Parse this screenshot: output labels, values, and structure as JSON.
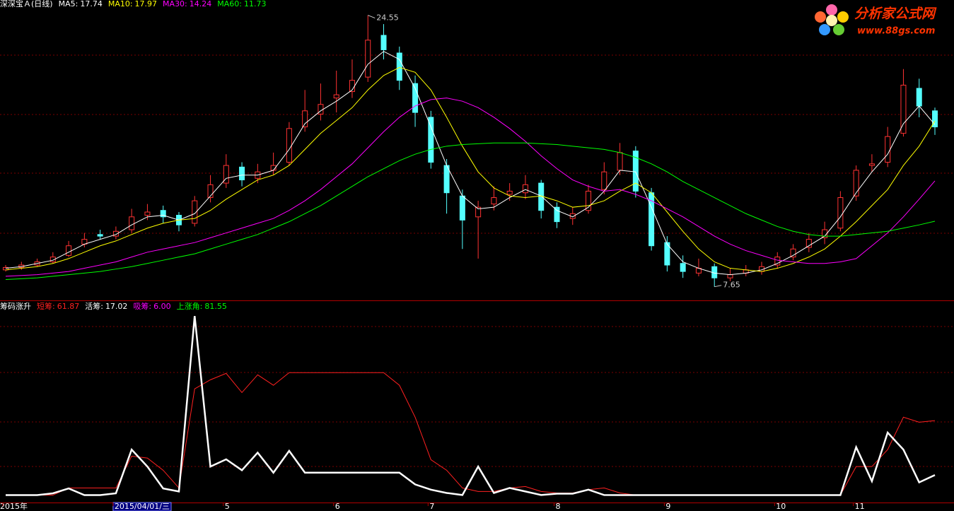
{
  "chart_data": [
    {
      "type": "candlestick",
      "title": "深深宝Ａ(日线)",
      "up_color": "#ff3232",
      "down_color": "#54ffff",
      "ylim": [
        6.8,
        25.5
      ],
      "open": [
        8.7,
        8.85,
        9.0,
        9.2,
        9.6,
        10.3,
        10.9,
        10.8,
        11.2,
        12.1,
        12.4,
        12.1,
        11.6,
        13.2,
        14.1,
        15.1,
        14.4,
        14.9,
        15.4,
        17.6,
        18.4,
        19.4,
        19.8,
        20.7,
        23.3,
        22.2,
        20.3,
        18.2,
        15.2,
        13.3,
        12.0,
        12.8,
        13.4,
        13.5,
        14.1,
        12.6,
        11.9,
        12.4,
        13.7,
        14.9,
        16.1,
        13.5,
        10.4,
        9.1,
        8.5,
        8.9,
        8.2,
        8.5,
        8.6,
        9.0,
        9.5,
        10.1,
        10.7,
        11.3,
        13.3,
        15.2,
        15.4,
        17.2,
        20.0,
        18.6
      ],
      "high": [
        9.0,
        9.2,
        9.4,
        9.8,
        10.5,
        11.0,
        11.2,
        11.4,
        12.5,
        12.8,
        12.7,
        12.3,
        13.3,
        14.6,
        15.9,
        15.4,
        15.3,
        16.0,
        17.9,
        19.9,
        20.3,
        21.1,
        21.8,
        24.55,
        24.0,
        22.6,
        20.8,
        18.6,
        15.6,
        13.7,
        13.0,
        13.9,
        14.1,
        14.6,
        14.3,
        12.9,
        12.6,
        14.0,
        15.4,
        16.6,
        16.4,
        13.8,
        10.8,
        9.6,
        9.4,
        9.1,
        8.8,
        9.0,
        9.2,
        9.8,
        10.3,
        11.0,
        11.7,
        13.6,
        15.2,
        15.9,
        17.6,
        21.2,
        20.6,
        18.8
      ],
      "low": [
        8.6,
        8.7,
        8.9,
        9.1,
        9.5,
        10.1,
        10.6,
        10.6,
        11.0,
        11.8,
        11.6,
        11.1,
        11.4,
        12.9,
        13.8,
        13.9,
        14.1,
        14.6,
        15.2,
        17.3,
        18.0,
        18.5,
        19.4,
        20.4,
        21.8,
        19.9,
        17.6,
        15.0,
        12.2,
        10.0,
        9.4,
        12.4,
        13.0,
        13.1,
        11.9,
        11.3,
        11.5,
        12.2,
        13.4,
        14.6,
        13.2,
        9.9,
        8.6,
        8.2,
        8.3,
        7.65,
        8.0,
        8.3,
        8.4,
        8.8,
        9.3,
        9.8,
        10.3,
        11.1,
        13.0,
        14.8,
        15.1,
        17.0,
        18.2,
        17.1
      ],
      "close": [
        8.85,
        9.0,
        9.2,
        9.5,
        10.2,
        10.6,
        10.8,
        11.1,
        12.0,
        12.3,
        12.0,
        11.5,
        13.0,
        14.0,
        15.2,
        14.3,
        14.8,
        15.2,
        17.5,
        18.6,
        19.0,
        19.6,
        20.5,
        23.0,
        22.4,
        20.5,
        18.5,
        15.4,
        13.5,
        11.8,
        12.6,
        13.2,
        13.6,
        14.0,
        12.4,
        11.7,
        12.2,
        13.6,
        14.8,
        16.0,
        13.6,
        10.2,
        9.0,
        8.6,
        8.8,
        8.2,
        8.4,
        8.7,
        8.9,
        9.5,
        10.0,
        10.6,
        11.2,
        13.2,
        14.9,
        15.3,
        17.0,
        20.2,
        18.9,
        17.6
      ],
      "series": [
        {
          "name": "MA5:",
          "legend_value": 17.74,
          "color": "#ffffff",
          "values": [
            8.8,
            8.9,
            9.1,
            9.3,
            9.8,
            10.3,
            10.6,
            10.9,
            11.5,
            12.0,
            12.1,
            11.8,
            12.2,
            13.3,
            14.4,
            14.6,
            14.6,
            14.9,
            16.2,
            17.8,
            18.6,
            19.2,
            19.9,
            21.5,
            22.3,
            21.8,
            20.0,
            17.6,
            15.2,
            13.3,
            12.5,
            12.6,
            13.2,
            13.7,
            13.3,
            12.4,
            12.0,
            12.6,
            13.6,
            14.9,
            14.8,
            12.6,
            10.3,
            9.2,
            8.8,
            8.5,
            8.4,
            8.5,
            8.7,
            9.1,
            9.6,
            10.2,
            10.8,
            12.0,
            13.5,
            14.8,
            15.9,
            17.8,
            18.9,
            17.74
          ]
        },
        {
          "name": "MA10:",
          "legend_value": 17.97,
          "color": "#ffff00",
          "values": [
            8.7,
            8.8,
            8.9,
            9.1,
            9.4,
            9.8,
            10.2,
            10.5,
            10.9,
            11.3,
            11.6,
            11.8,
            11.9,
            12.4,
            13.1,
            13.7,
            14.3,
            14.6,
            15.2,
            16.2,
            17.2,
            18.0,
            18.8,
            19.9,
            20.8,
            21.3,
            21.0,
            19.9,
            18.2,
            16.4,
            14.8,
            13.8,
            13.3,
            13.2,
            13.3,
            13.0,
            12.6,
            12.7,
            13.0,
            13.6,
            14.1,
            13.5,
            12.3,
            11.1,
            10.0,
            9.2,
            8.8,
            8.7,
            8.6,
            8.8,
            9.1,
            9.5,
            10.0,
            10.8,
            11.7,
            12.7,
            13.7,
            15.2,
            16.4,
            17.97
          ]
        },
        {
          "name": "MA30:",
          "legend_value": 14.24,
          "color": "#ff00ff",
          "values": [
            8.3,
            8.35,
            8.4,
            8.5,
            8.6,
            8.8,
            9.0,
            9.2,
            9.5,
            9.8,
            10.0,
            10.2,
            10.4,
            10.7,
            11.0,
            11.3,
            11.6,
            11.9,
            12.4,
            13.0,
            13.7,
            14.5,
            15.3,
            16.3,
            17.3,
            18.2,
            18.9,
            19.3,
            19.4,
            19.2,
            18.8,
            18.2,
            17.5,
            16.7,
            15.8,
            15.0,
            14.3,
            13.9,
            13.6,
            13.7,
            13.4,
            13.0,
            12.5,
            12.0,
            11.4,
            10.8,
            10.3,
            9.9,
            9.6,
            9.3,
            9.2,
            9.1,
            9.1,
            9.2,
            9.4,
            10.2,
            11.0,
            12.0,
            13.1,
            14.24
          ]
        },
        {
          "name": "MA60:",
          "legend_value": 11.73,
          "color": "#00ff00",
          "values": [
            8.1,
            8.15,
            8.2,
            8.3,
            8.4,
            8.5,
            8.6,
            8.75,
            8.9,
            9.1,
            9.3,
            9.5,
            9.7,
            10.0,
            10.3,
            10.6,
            10.9,
            11.3,
            11.7,
            12.2,
            12.7,
            13.3,
            13.9,
            14.5,
            15.0,
            15.5,
            15.9,
            16.2,
            16.4,
            16.5,
            16.55,
            16.6,
            16.6,
            16.6,
            16.55,
            16.5,
            16.4,
            16.3,
            16.2,
            16.0,
            15.7,
            15.3,
            14.8,
            14.2,
            13.7,
            13.2,
            12.7,
            12.2,
            11.8,
            11.4,
            11.1,
            10.9,
            10.8,
            10.8,
            10.9,
            11.0,
            11.1,
            11.3,
            11.5,
            11.73
          ]
        }
      ]
    },
    {
      "type": "line",
      "title": "筹码涨升",
      "ylim": [
        -5,
        158
      ],
      "categories": [
        "2015年",
        null,
        null,
        null,
        null,
        null,
        null,
        "2015/04/01/三",
        null,
        null,
        null,
        null,
        null,
        null,
        "5",
        null,
        null,
        null,
        null,
        null,
        null,
        "6",
        null,
        null,
        null,
        null,
        null,
        "7",
        null,
        null,
        null,
        null,
        null,
        null,
        null,
        "8",
        null,
        null,
        null,
        null,
        null,
        null,
        "9",
        null,
        null,
        null,
        null,
        null,
        null,
        "10",
        null,
        null,
        null,
        null,
        "11",
        null,
        null,
        null,
        null,
        null
      ],
      "series": [
        {
          "name": "短筹:",
          "legend_value": 61.87,
          "color": "#ff2020",
          "legend_color": "#ff2020",
          "values": [
            0.5,
            0.5,
            0.5,
            0.5,
            6.4,
            6.4,
            6.4,
            6.4,
            32.6,
            31,
            21,
            6.4,
            88,
            95.5,
            100.8,
            85,
            99.6,
            91,
            101.4,
            101.4,
            101.4,
            101.4,
            101.4,
            101.4,
            101.4,
            91,
            64.7,
            29.7,
            21,
            6.4,
            3.5,
            3.5,
            6.4,
            7.6,
            3.5,
            2.3,
            2.3,
            5,
            6.4,
            2.3,
            0.6,
            0.6,
            0.6,
            0.6,
            0.6,
            0.6,
            0.6,
            0.6,
            0.6,
            0.6,
            0.6,
            0.6,
            0.6,
            0.6,
            24,
            24,
            38,
            64.7,
            60.6,
            61.87
          ]
        },
        {
          "name": "活筹:",
          "legend_value": 17.02,
          "color": "#ffffff",
          "legend_color": "#ffffff",
          "values": [
            0.5,
            0.5,
            0.5,
            2,
            6,
            0.5,
            0.5,
            2,
            38,
            24,
            6,
            3.5,
            148,
            24,
            30,
            21,
            35.5,
            19,
            37,
            19,
            19,
            19,
            19,
            19,
            19,
            19,
            9.3,
            5,
            2.3,
            0.6,
            24,
            2.3,
            6.4,
            3.5,
            0.6,
            1.7,
            1.7,
            5,
            0.6,
            0.5,
            0.5,
            0.5,
            0.5,
            0.5,
            0.5,
            0.5,
            0.5,
            0.5,
            0.5,
            0.5,
            0.5,
            0.5,
            0.5,
            0.5,
            40,
            12,
            52,
            38,
            11,
            17.02
          ]
        },
        {
          "name": "吸筹:",
          "legend_value": 6,
          "legend_label": "6.00",
          "legend_color": "#ff00ff"
        },
        {
          "name": "上涨角:",
          "legend_value": 81.55,
          "legend_color": "#00ff00"
        }
      ]
    }
  ],
  "logo": {
    "title": "分析家公式网",
    "url": "www.88gs.com"
  }
}
